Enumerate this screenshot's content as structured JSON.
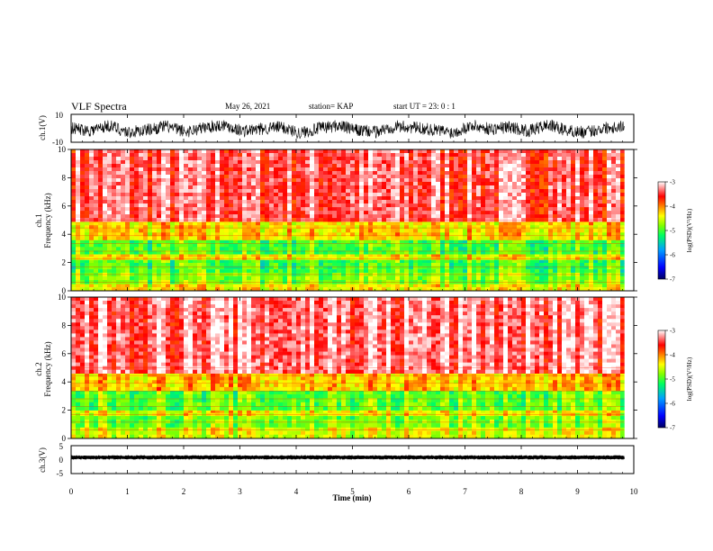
{
  "header": {
    "title": "VLF Spectra",
    "date": "May 26, 2021",
    "station": "station= KAP",
    "start": "start  UT =   23: 0  : 1"
  },
  "colors": {
    "colormap": [
      "#000060",
      "#0000ff",
      "#00a0ff",
      "#00ff60",
      "#80ff00",
      "#ffff00",
      "#ff8000",
      "#ff0000",
      "#ffffff"
    ]
  },
  "chart_data": [
    {
      "type": "line",
      "id": "ch1-waveform",
      "ylabel": "ch.1(V)",
      "ylim": [
        -10,
        10
      ],
      "yticks": [
        "10",
        "-10"
      ],
      "xlim": [
        0,
        10
      ],
      "trend": [
        0.2,
        -1.5,
        2.0,
        -3.0,
        -1.0,
        1.5,
        -2.5,
        0.5,
        2.5,
        -2.0,
        -0.5,
        1.0,
        -3.5,
        0.0,
        2.0,
        -1.5,
        -2.5,
        1.5,
        0.5,
        -1.0,
        -3.0,
        2.0,
        -0.5,
        1.0,
        -2.0,
        2.5,
        -1.5,
        -3.0,
        0.5,
        1.5
      ]
    },
    {
      "type": "heatmap",
      "id": "ch1-spectrogram",
      "ylabel": "ch.1\nFrequency (kHz)",
      "ylim": [
        0,
        10
      ],
      "yticks": [
        "0",
        "2",
        "4",
        "6",
        "8",
        "10"
      ],
      "xlim": [
        0,
        10
      ],
      "colorbar": {
        "label": "log(PSD)(V²/Hz)",
        "range": [
          -7,
          -3
        ],
        "ticks": [
          "-3",
          "-4",
          "-5",
          "-6",
          "-7"
        ]
      },
      "bands_khz": [
        {
          "from": 0,
          "to": 0.5,
          "level": -4.4
        },
        {
          "from": 0.5,
          "to": 1.3,
          "level": -4.8
        },
        {
          "from": 1.3,
          "to": 2.2,
          "level": -5.0
        },
        {
          "from": 2.2,
          "to": 2.6,
          "level": -4.4
        },
        {
          "from": 2.6,
          "to": 3.6,
          "level": -5.0
        },
        {
          "from": 3.6,
          "to": 4.9,
          "level": -4.3
        },
        {
          "from": 4.9,
          "to": 10,
          "level": -3.4
        }
      ]
    },
    {
      "type": "heatmap",
      "id": "ch2-spectrogram",
      "ylabel": "ch.2\nFrequency (kHz)",
      "ylim": [
        0,
        10
      ],
      "yticks": [
        "0",
        "2",
        "4",
        "6",
        "8",
        "10"
      ],
      "xlim": [
        0,
        10
      ],
      "colorbar": {
        "label": "log(PSD)(V²/Hz)",
        "range": [
          -7,
          -3
        ],
        "ticks": [
          "-3",
          "-4",
          "-5",
          "-6",
          "-7"
        ]
      },
      "bands_khz": [
        {
          "from": 0,
          "to": 0.8,
          "level": -4.5
        },
        {
          "from": 0.8,
          "to": 1.6,
          "level": -4.8
        },
        {
          "from": 1.6,
          "to": 2.0,
          "level": -4.4
        },
        {
          "from": 2.0,
          "to": 3.4,
          "level": -4.9
        },
        {
          "from": 3.4,
          "to": 4.6,
          "level": -4.2
        },
        {
          "from": 4.6,
          "to": 10,
          "level": -3.3
        }
      ]
    },
    {
      "type": "line",
      "id": "ch3-waveform",
      "ylabel": "ch.3(V)",
      "ylim": [
        -5,
        5
      ],
      "yticks": [
        "5",
        "0",
        "-5"
      ],
      "xlim": [
        0,
        10
      ],
      "level": 0.8
    }
  ],
  "x_axis": {
    "label": "Time (min)",
    "range": [
      0,
      10
    ],
    "ticks": [
      "0",
      "1",
      "2",
      "3",
      "4",
      "5",
      "6",
      "7",
      "8",
      "9",
      "10"
    ],
    "data_end": 9.83
  }
}
